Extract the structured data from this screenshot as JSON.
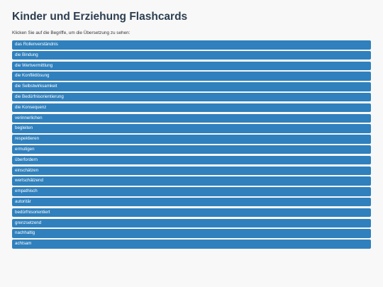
{
  "title": "Kinder und Erziehung Flashcards",
  "instructions": "Klicken Sie auf die Begriffe, um die Übersetzung zu sehen:",
  "colors": {
    "card_background": "#2f80bd",
    "card_text": "#ffffff",
    "title": "#2c3e50",
    "page_background": "#f8f8f8"
  },
  "cards": [
    "das Rollenverständnis",
    "die Bindung",
    "die Wertvermittlung",
    "die Konfliktlösung",
    "die Selbstwirksamkeit",
    "die Bedürfnisorientierung",
    "die Konsequenz",
    "verinnerlichen",
    "begleiten",
    "respektieren",
    "ermutigen",
    "überfordern",
    "einschätzen",
    "wertschätzend",
    "empathisch",
    "autoritär",
    "bedürfnisorientiert",
    "grenzsetzend",
    "nachhaltig",
    "achtsam"
  ]
}
